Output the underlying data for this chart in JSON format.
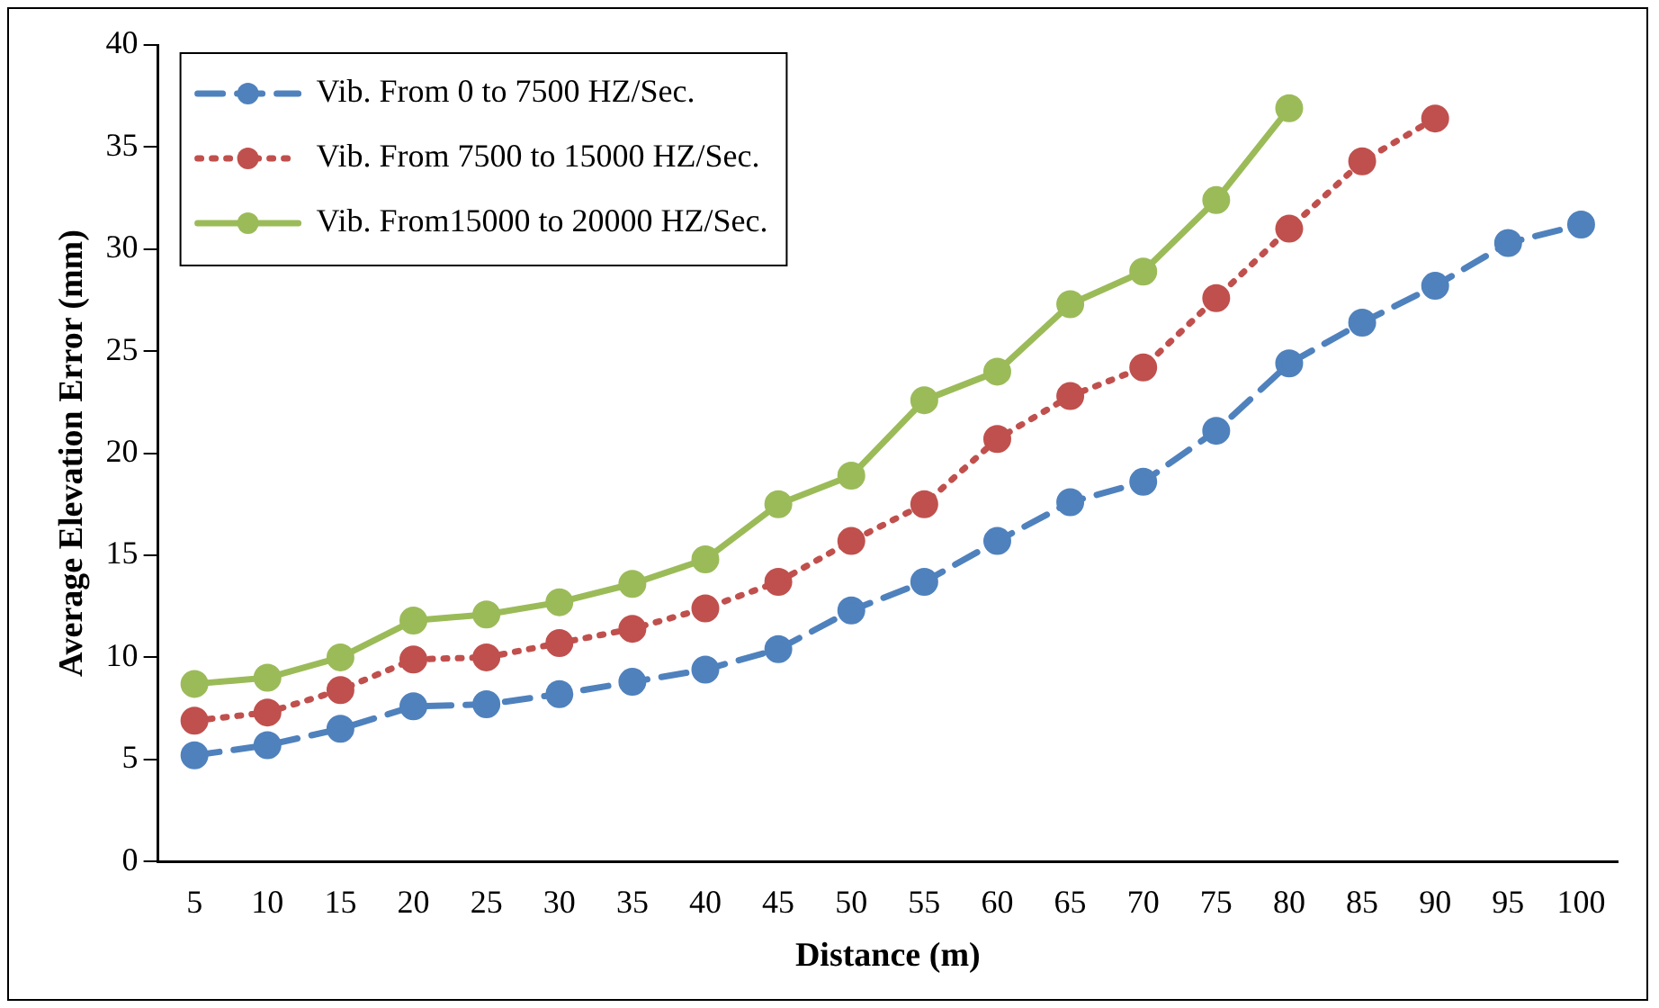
{
  "chart_data": {
    "type": "line",
    "xlabel": "Distance (m)",
    "ylabel": "Average Elevation Error (mm)",
    "categories": [
      "5",
      "10",
      "15",
      "20",
      "25",
      "30",
      "35",
      "40",
      "45",
      "50",
      "55",
      "60",
      "65",
      "70",
      "75",
      "80",
      "85",
      "90",
      "95",
      "100"
    ],
    "ylim": [
      0,
      40
    ],
    "yticks": [
      0,
      5,
      10,
      15,
      20,
      25,
      30,
      35,
      40
    ],
    "grid": false,
    "legend": "top left",
    "marker": "circle",
    "series": [
      {
        "name": "Vib. From 0 to 7500 HZ/Sec.",
        "color": "#4f81bd",
        "line_style": "dashed",
        "values": [
          5.2,
          5.7,
          6.5,
          7.6,
          7.7,
          8.2,
          8.8,
          9.4,
          10.4,
          12.3,
          13.7,
          15.7,
          17.6,
          18.6,
          21.1,
          24.4,
          26.4,
          28.2,
          30.3,
          31.2
        ]
      },
      {
        "name": "Vib. From 7500 to 15000 HZ/Sec.",
        "color": "#c0504d",
        "line_style": "dotted",
        "values": [
          6.9,
          7.3,
          8.4,
          9.9,
          10.0,
          10.7,
          11.4,
          12.4,
          13.7,
          15.7,
          17.5,
          20.7,
          22.8,
          24.2,
          27.6,
          31.0,
          34.3,
          36.4,
          null,
          null
        ]
      },
      {
        "name": "Vib. From15000 to 20000 HZ/Sec.",
        "color": "#9bbb59",
        "line_style": "solid",
        "values": [
          8.7,
          9.0,
          10.0,
          11.8,
          12.1,
          12.7,
          13.6,
          14.8,
          17.5,
          18.9,
          22.6,
          24.0,
          27.3,
          28.9,
          32.4,
          36.9,
          null,
          null,
          null,
          null
        ]
      }
    ]
  }
}
